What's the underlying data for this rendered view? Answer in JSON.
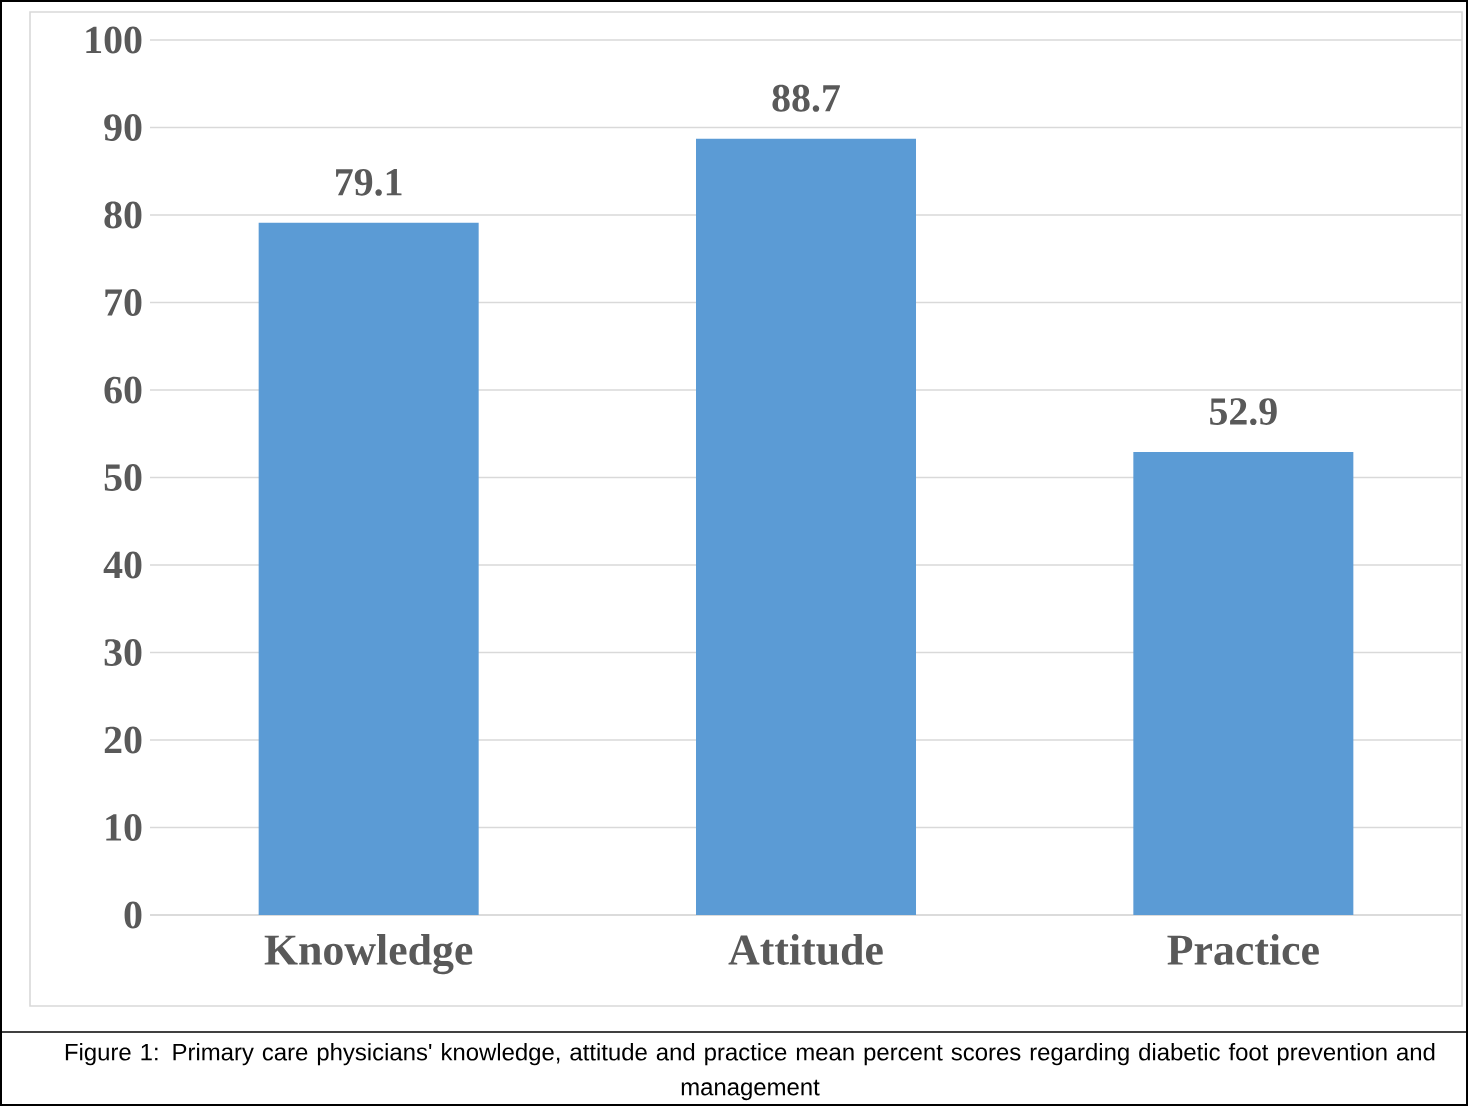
{
  "chart_data": {
    "type": "bar",
    "categories": [
      "Knowledge",
      "Attitude",
      "Practice"
    ],
    "values": [
      79.1,
      88.7,
      52.9
    ],
    "color": "#5b9bd5",
    "ylim": [
      0,
      100
    ],
    "yticks": [
      0,
      10,
      20,
      30,
      40,
      50,
      60,
      70,
      80,
      90,
      100
    ],
    "grid": "y",
    "data_labels": true,
    "annotations": [
      "Figure 1: Primary care physicians' knowledge, attitude and practice mean percent scores regarding diabetic foot prevention and management"
    ]
  }
}
